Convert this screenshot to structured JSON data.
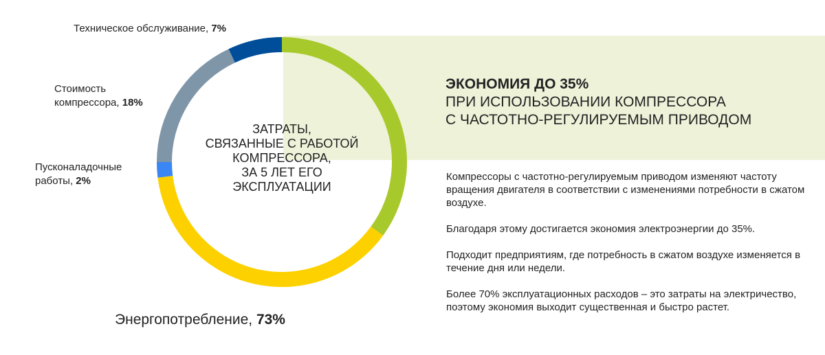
{
  "chart_data": {
    "type": "pie",
    "center_label": [
      "ЗАТРАТЫ,",
      "СВЯЗАННЫЕ С РАБОТОЙ",
      "КОМПРЕССОРА,",
      "ЗА 5 ЛЕТ ЕГО",
      "ЭКСПЛУАТАЦИИ"
    ],
    "slices": [
      {
        "name": "Техническое обслуживание",
        "value": 7,
        "value_label": "7%",
        "color": "#004d99"
      },
      {
        "name": "Стоимость компрессора",
        "name_line1": "Стоимость",
        "name_line2": "компрессора",
        "value": 18,
        "value_label": "18%",
        "color": "#7f95a8"
      },
      {
        "name": "Пусконаладочные работы",
        "name_line1": "Пусконаладочные",
        "name_line2": "работы",
        "value": 2,
        "value_label": "2%",
        "color": "#3a86f5"
      },
      {
        "name": "Энергопотребление",
        "value": 73,
        "value_label": "73%",
        "colors": [
          "#a8c92b",
          "#fdd100"
        ]
      }
    ]
  },
  "panel": {
    "headline_bold": "ЭКОНОМИЯ ДО 35%",
    "headline_line2": "ПРИ ИСПОЛЬЗОВАНИИ КОМПРЕССОРА",
    "headline_line3": "С ЧАСТОТНО-РЕГУЛИРУЕМЫМ ПРИВОДОМ",
    "paragraphs": [
      "Компрессоры с частотно-регулируемым приводом изменяют частоту вращения двигателя в соответствии с изменениями потребности в сжатом воздухе.",
      "Благодаря этому достигается экономия электроэнергии до 35%.",
      "Подходит предприятиям, где потребность в сжатом воздухе изменяется в течение дня или недели.",
      "Более 70% эксплуатационных расходов – это затраты на электричество, поэтому экономия выходит существенная и быстро растет."
    ]
  },
  "colors": {
    "panel_bg": "#eef2d9",
    "savings_share": 35
  }
}
